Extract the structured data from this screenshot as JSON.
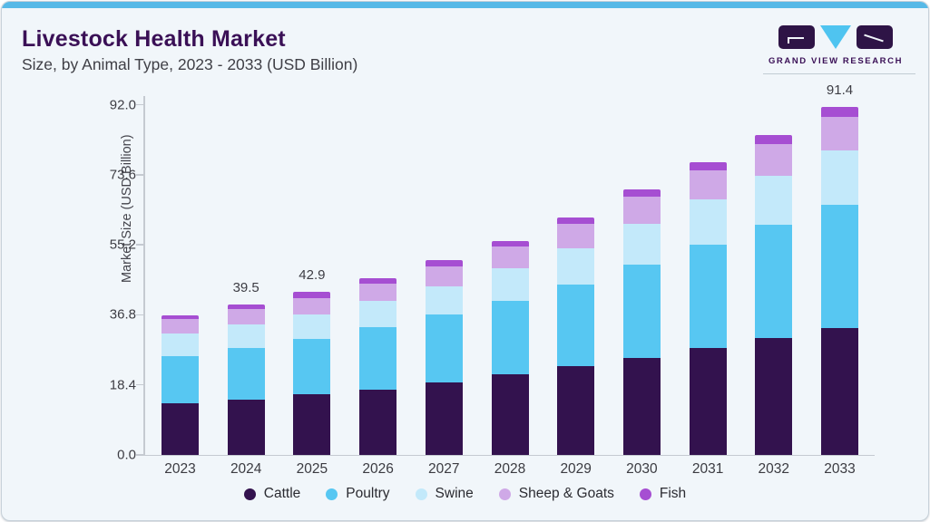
{
  "header": {
    "title": "Livestock Health Market",
    "subtitle": "Size, by Animal Type, 2023 - 2033 (USD Billion)"
  },
  "logo": {
    "text": "GRAND VIEW RESEARCH",
    "brand_dark": "#2e1446",
    "brand_cyan": "#4fc4f0"
  },
  "chart_data": {
    "type": "bar",
    "stacked": true,
    "title": "Livestock Health Market",
    "subtitle": "Size, by Animal Type, 2023 - 2033 (USD Billion)",
    "xlabel": "",
    "ylabel": "Market Size (USD Billion)",
    "ylim": [
      0,
      92.0
    ],
    "yticks": [
      0.0,
      18.4,
      36.8,
      55.2,
      73.6,
      92.0
    ],
    "grid": false,
    "legend_position": "bottom",
    "categories": [
      "2023",
      "2024",
      "2025",
      "2026",
      "2027",
      "2028",
      "2029",
      "2030",
      "2031",
      "2032",
      "2033"
    ],
    "series": [
      {
        "name": "Cattle",
        "color": "#33124e",
        "values": [
          13.6,
          14.6,
          16.0,
          17.2,
          19.0,
          21.2,
          23.3,
          25.6,
          28.1,
          30.7,
          33.3
        ]
      },
      {
        "name": "Poultry",
        "color": "#57c7f2",
        "values": [
          12.4,
          13.6,
          14.5,
          16.3,
          17.8,
          19.2,
          21.5,
          24.5,
          27.1,
          29.7,
          32.4
        ]
      },
      {
        "name": "Swine",
        "color": "#c3e9fa",
        "values": [
          5.8,
          6.1,
          6.4,
          7.1,
          7.4,
          8.7,
          9.4,
          10.7,
          11.9,
          12.9,
          14.2
        ]
      },
      {
        "name": "Sheep & Goats",
        "color": "#cfa9e7",
        "values": [
          3.8,
          4.0,
          4.4,
          4.5,
          5.4,
          5.6,
          6.4,
          7.1,
          7.7,
          8.5,
          9.0
        ]
      },
      {
        "name": "Fish",
        "color": "#a64ed2",
        "values": [
          1.0,
          1.2,
          1.6,
          1.4,
          1.5,
          1.5,
          1.8,
          2.0,
          2.2,
          2.3,
          2.5
        ]
      }
    ],
    "totals": {
      "2023": 36.6,
      "2024": 39.5,
      "2025": 42.9,
      "2026": 46.5,
      "2027": 51.1,
      "2028": 56.2,
      "2029": 62.4,
      "2030": 69.9,
      "2031": 77.0,
      "2032": 84.1,
      "2033": 91.4
    },
    "totals_labels": {
      "2024": "39.5",
      "2025": "42.9",
      "2033": "91.4"
    }
  },
  "colors": {
    "card_background": "#f1f6fa",
    "card_border": "#c7d1d9",
    "accent_bar": "#57b9e7",
    "title_text": "#3a1056",
    "axis_line": "#c5cad1",
    "axis_text": "#3d3d44"
  }
}
